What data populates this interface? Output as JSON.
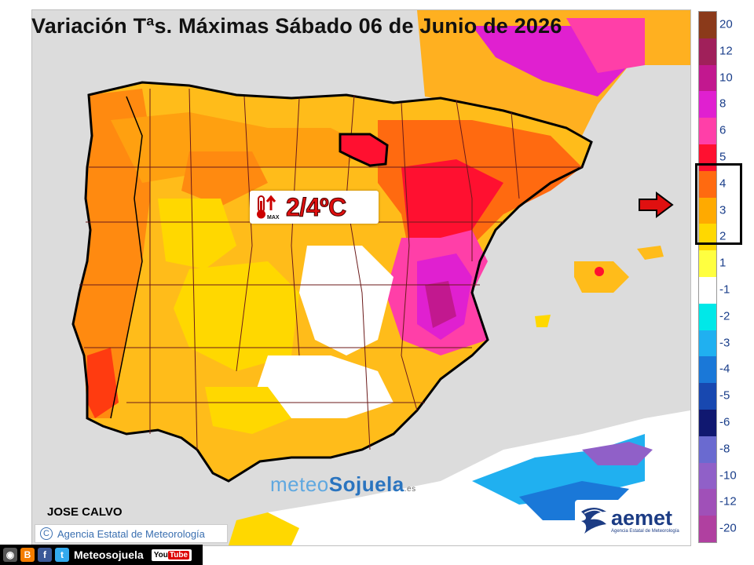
{
  "title": "Variación Tªs. Máximas Sábado 06 de Junio de 2026",
  "badge": {
    "value": "2/4ºC",
    "max_label": "MAX",
    "icon": "thermometer-up-icon"
  },
  "legend": {
    "labels": [
      "20",
      "12",
      "10",
      "8",
      "6",
      "5",
      "4",
      "3",
      "2",
      "1",
      "-1",
      "-2",
      "-3",
      "-4",
      "-5",
      "-6",
      "-8",
      "-10",
      "-12",
      "-20"
    ],
    "colors": [
      "#8b3a1a",
      "#a0205a",
      "#c2188f",
      "#e020d0",
      "#ff3fa8",
      "#ff1030",
      "#ff6a10",
      "#ffaa00",
      "#ffd800",
      "#ffff40",
      "#ffffff",
      "#00e8e8",
      "#20b0f0",
      "#1a78d8",
      "#1848b0",
      "#101870",
      "#6a6ad0",
      "#9060c8",
      "#a050b8",
      "#b040a0"
    ],
    "highlighted_range": [
      "2",
      "4"
    ]
  },
  "author": "JOSE CALVO",
  "agency_credit": "Agencia Estatal de Meteorología",
  "logo_meteo": {
    "part1": "meteo",
    "part2": "Sojuela",
    "suffix": ".es"
  },
  "aemet": {
    "name": "aemet",
    "subtitle": "Agencia Estatal de Meteorología"
  },
  "social": {
    "handle": "Meteosojuela",
    "youtube": "You",
    "youtube_b": "Tube"
  }
}
